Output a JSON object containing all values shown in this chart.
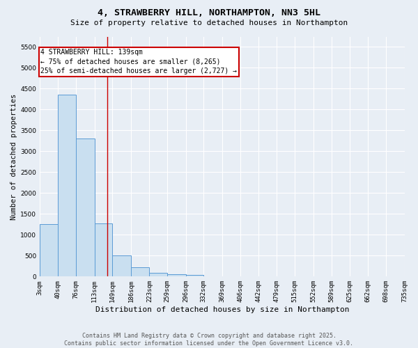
{
  "title_line1": "4, STRAWBERRY HILL, NORTHAMPTON, NN3 5HL",
  "title_line2": "Size of property relative to detached houses in Northampton",
  "xlabel": "Distribution of detached houses by size in Northampton",
  "ylabel": "Number of detached properties",
  "bin_edges": [
    3,
    40,
    76,
    113,
    149,
    186,
    223,
    259,
    296,
    332,
    369,
    406,
    442,
    479,
    515,
    552,
    589,
    625,
    662,
    698,
    735
  ],
  "bar_heights": [
    1250,
    4350,
    3300,
    1270,
    500,
    220,
    85,
    55,
    40,
    0,
    0,
    0,
    0,
    0,
    0,
    0,
    0,
    0,
    0,
    0
  ],
  "bar_color": "#c9dff0",
  "bar_edge_color": "#5b9bd5",
  "property_size": 139,
  "vline_color": "#cc0000",
  "ylim_max": 5750,
  "yticks": [
    0,
    500,
    1000,
    1500,
    2000,
    2500,
    3000,
    3500,
    4000,
    4500,
    5000,
    5500
  ],
  "annotation_line1": "4 STRAWBERRY HILL: 139sqm",
  "annotation_line2": "← 75% of detached houses are smaller (8,265)",
  "annotation_line3": "25% of semi-detached houses are larger (2,727) →",
  "annotation_box_facecolor": "#ffffff",
  "annotation_box_edgecolor": "#cc0000",
  "footer_line1": "Contains HM Land Registry data © Crown copyright and database right 2025.",
  "footer_line2": "Contains public sector information licensed under the Open Government Licence v3.0.",
  "bg_color": "#e8eef5",
  "grid_color": "#ffffff",
  "title_fontsize": 9.5,
  "subtitle_fontsize": 8,
  "xlabel_fontsize": 8,
  "ylabel_fontsize": 7.5,
  "tick_fontsize": 6.5,
  "footer_fontsize": 6,
  "annotation_fontsize": 7
}
